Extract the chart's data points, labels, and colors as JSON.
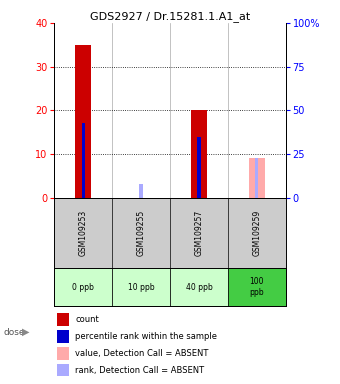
{
  "title": "GDS2927 / Dr.15281.1.A1_at",
  "samples": [
    "GSM109253",
    "GSM109255",
    "GSM109257",
    "GSM109259"
  ],
  "doses": [
    "0 ppb",
    "10 ppb",
    "40 ppb",
    "100\nppb"
  ],
  "count_values": [
    35,
    0,
    20,
    0
  ],
  "rank_values": [
    42.5,
    0,
    35,
    0
  ],
  "count_absent_values": [
    0,
    0,
    0,
    9
  ],
  "rank_absent_values": [
    0,
    8,
    0,
    23
  ],
  "left_ylim": [
    0,
    40
  ],
  "right_ylim": [
    0,
    100
  ],
  "left_yticks": [
    0,
    10,
    20,
    30,
    40
  ],
  "right_yticks": [
    0,
    25,
    50,
    75,
    100
  ],
  "count_color": "#cc0000",
  "rank_color": "#0000cc",
  "count_absent_color": "#ffaaaa",
  "rank_absent_color": "#aaaaff",
  "dose_bg_colors": [
    "#ccffcc",
    "#ccffcc",
    "#ccffcc",
    "#44cc44"
  ],
  "sample_bg_color": "#cccccc",
  "legend_items": [
    {
      "color": "#cc0000",
      "label": "count"
    },
    {
      "color": "#0000cc",
      "label": "percentile rank within the sample"
    },
    {
      "color": "#ffaaaa",
      "label": "value, Detection Call = ABSENT"
    },
    {
      "color": "#aaaaff",
      "label": "rank, Detection Call = ABSENT"
    }
  ]
}
